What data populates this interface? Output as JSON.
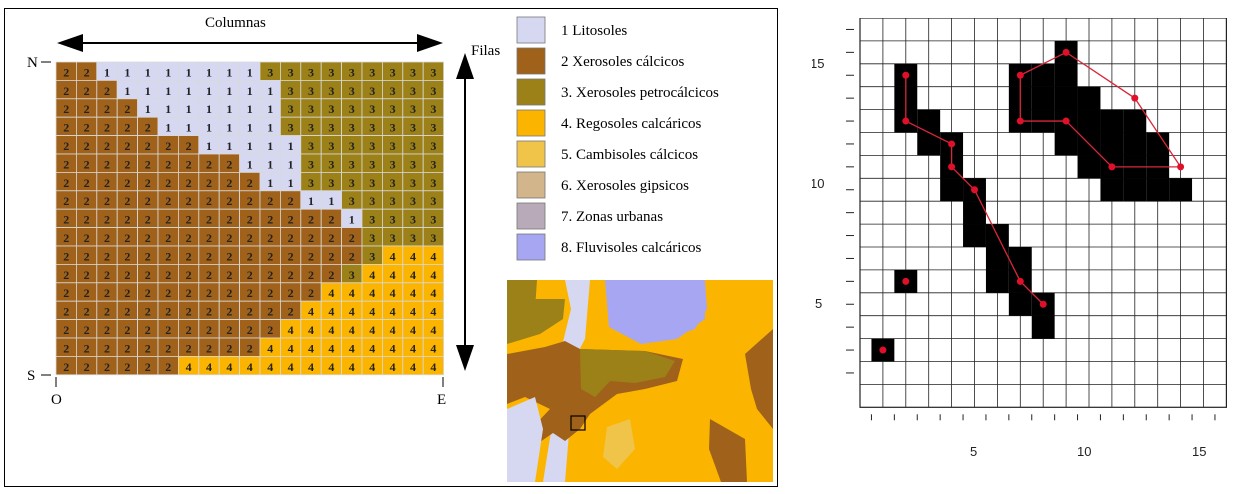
{
  "raster": {
    "columns_label": "Columnas",
    "rows_label": "Filas",
    "north": "N",
    "south": "S",
    "west": "O",
    "east": "E",
    "grid": [
      "2211111111333333333",
      "2221111111133333333",
      "2222111111133333333",
      "2222211111133333333",
      "2222222111113333333",
      "2222222221113333333",
      "2222222222113333333",
      "2222222222221133333",
      "2222222222222213333",
      "2222222222222223333",
      "2222222222222223444",
      "2222222222222234444",
      "2222222222222444444",
      "2222222222224444444",
      "2222222222244444444",
      "2222222222444444444",
      "2222224444444444444"
    ]
  },
  "legend": {
    "items": [
      {
        "label": "1 Litosoles",
        "color": "#d6d8f2"
      },
      {
        "label": "2 Xerosoles cálcicos",
        "color": "#a0621a"
      },
      {
        "label": "3. Xerosoles petrocálcicos",
        "color": "#9c8118"
      },
      {
        "label": "4. Regosoles calcáricos",
        "color": "#fbb500"
      },
      {
        "label": "5. Cambisoles cálcicos",
        "color": "#f0c448"
      },
      {
        "label": "6. Xerosoles gipsicos",
        "color": "#d2b58a"
      },
      {
        "label": "7. Zonas urbanas",
        "color": "#b8aab9"
      },
      {
        "label": "8. Fluvisoles calcáricos",
        "color": "#a6a6f2"
      }
    ]
  },
  "vector_grid": {
    "x_ticks": [
      "5",
      "10",
      "15"
    ],
    "y_ticks": [
      "5",
      "10",
      "15"
    ],
    "filled_cells": [
      [
        2,
        2
      ],
      [
        3,
        5
      ],
      [
        3,
        13
      ],
      [
        3,
        14
      ],
      [
        3,
        12
      ],
      [
        4,
        12
      ],
      [
        4,
        11
      ],
      [
        5,
        11
      ],
      [
        5,
        10
      ],
      [
        5,
        9
      ],
      [
        6,
        9
      ],
      [
        6,
        8
      ],
      [
        6,
        7
      ],
      [
        7,
        7
      ],
      [
        7,
        6
      ],
      [
        7,
        5
      ],
      [
        8,
        6
      ],
      [
        8,
        5
      ],
      [
        8,
        4
      ],
      [
        9,
        4
      ],
      [
        9,
        3
      ],
      [
        8,
        14
      ],
      [
        9,
        14
      ],
      [
        10,
        14
      ],
      [
        10,
        15
      ],
      [
        8,
        13
      ],
      [
        9,
        13
      ],
      [
        10,
        13
      ],
      [
        11,
        13
      ],
      [
        8,
        12
      ],
      [
        9,
        12
      ],
      [
        10,
        12
      ],
      [
        11,
        12
      ],
      [
        12,
        12
      ],
      [
        13,
        12
      ],
      [
        10,
        11
      ],
      [
        11,
        11
      ],
      [
        12,
        11
      ],
      [
        13,
        11
      ],
      [
        14,
        11
      ],
      [
        11,
        10
      ],
      [
        12,
        10
      ],
      [
        13,
        10
      ],
      [
        14,
        10
      ],
      [
        12,
        9
      ],
      [
        13,
        9
      ],
      [
        14,
        9
      ],
      [
        15,
        9
      ]
    ],
    "lines": [
      [
        [
          3,
          14
        ],
        [
          3,
          12
        ],
        [
          5,
          11
        ],
        [
          5,
          10
        ],
        [
          6,
          9
        ],
        [
          8,
          5
        ],
        [
          9,
          4
        ]
      ],
      [
        [
          8,
          14
        ],
        [
          10,
          15
        ],
        [
          13,
          13
        ],
        [
          15,
          10
        ],
        [
          12,
          10
        ],
        [
          10,
          12
        ],
        [
          8,
          12
        ],
        [
          8,
          14
        ]
      ]
    ],
    "points": [
      [
        2,
        2
      ],
      [
        3,
        5
      ],
      [
        3,
        14
      ],
      [
        3,
        12
      ],
      [
        5,
        11
      ],
      [
        5,
        10
      ],
      [
        6,
        9
      ],
      [
        8,
        5
      ],
      [
        9,
        4
      ],
      [
        8,
        14
      ],
      [
        10,
        15
      ],
      [
        13,
        13
      ],
      [
        15,
        10
      ],
      [
        12,
        10
      ],
      [
        10,
        12
      ],
      [
        8,
        12
      ]
    ]
  }
}
